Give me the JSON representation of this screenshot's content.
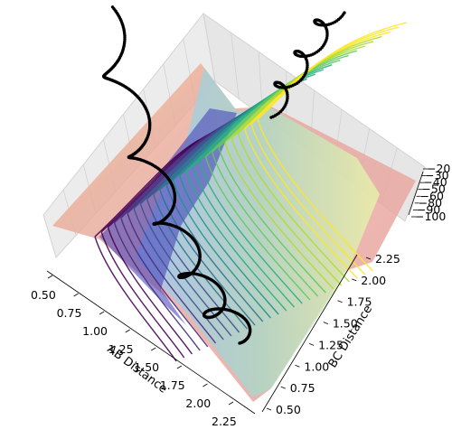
{
  "chart_data": {
    "type": "surface3d",
    "xlabel": "AB Distance",
    "ylabel": "BC Distance",
    "zlabel": "",
    "x_ticks": [
      "0.50",
      "0.75",
      "1.00",
      "1.25",
      "1.50",
      "1.75",
      "2.00",
      "2.25"
    ],
    "y_ticks": [
      "0.50",
      "0.75",
      "1.00",
      "1.25",
      "1.50",
      "1.75",
      "2.00",
      "2.25"
    ],
    "z_ticks": [
      "−100",
      "−90",
      "−80",
      "−60",
      "−50",
      "−40",
      "−30",
      "−20"
    ],
    "xlim": [
      0.5,
      2.35
    ],
    "ylim": [
      0.5,
      2.35
    ],
    "zlim": [
      -100,
      -20
    ],
    "grid": true,
    "surface_colormap": "terrain-like (pink, orange, green, cyan, blue)",
    "contour_colormap": "viridis",
    "trajectory_color": "#000000"
  }
}
